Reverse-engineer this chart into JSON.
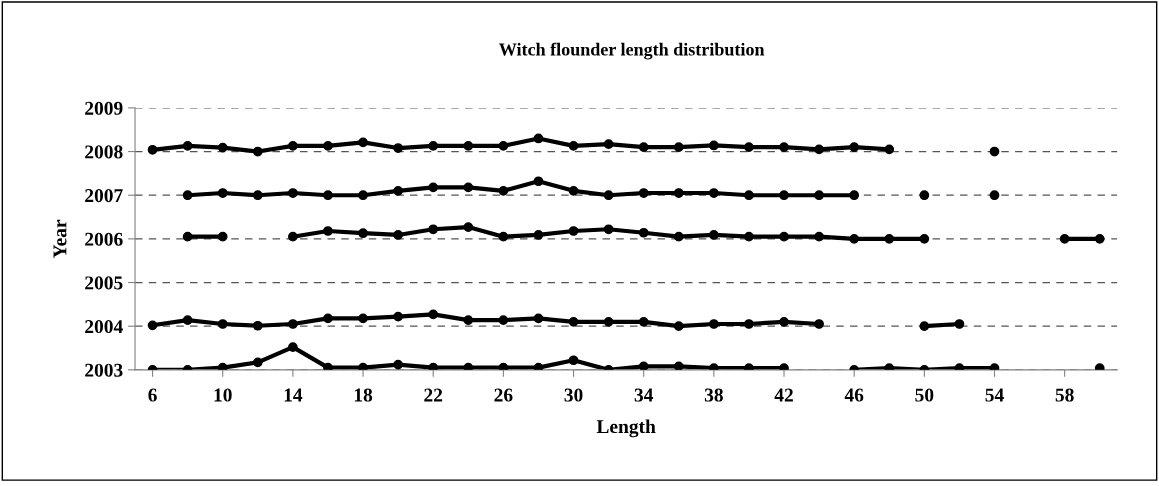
{
  "chart_data": {
    "type": "line",
    "title": "Witch flounder length distribution",
    "xlabel": "Length",
    "ylabel": "Year",
    "x": [
      6,
      8,
      10,
      12,
      14,
      16,
      18,
      20,
      22,
      24,
      26,
      28,
      30,
      32,
      34,
      36,
      38,
      40,
      42,
      44,
      46,
      48,
      50,
      52,
      54,
      56,
      58,
      60
    ],
    "series": [
      {
        "color": "#000000",
        "values": [
          2003.0,
          2003.0,
          2003.05,
          2003.17,
          2003.52,
          2003.05,
          2003.05,
          2003.12,
          2003.05,
          2003.05,
          2003.05,
          2003.05,
          2003.22,
          2003.0,
          2003.08,
          2003.08,
          2003.04,
          2003.04,
          2003.04,
          null,
          2003.0,
          2003.04,
          2003.0,
          2003.04,
          2003.04,
          null,
          null,
          2003.04
        ]
      },
      {
        "color": "#000000",
        "values": [
          2004.02,
          2004.14,
          2004.05,
          2004.01,
          2004.05,
          2004.18,
          2004.18,
          2004.22,
          2004.27,
          2004.14,
          2004.14,
          2004.18,
          2004.1,
          2004.1,
          2004.1,
          2004.0,
          2004.05,
          2004.05,
          2004.1,
          2004.05,
          null,
          null,
          2004.0,
          2004.05,
          null,
          null,
          null,
          null
        ]
      },
      {
        "color": "#000000",
        "values": [
          null,
          2006.05,
          2006.05,
          null,
          2006.05,
          2006.18,
          2006.13,
          2006.09,
          2006.22,
          2006.27,
          2006.05,
          2006.09,
          2006.18,
          2006.22,
          2006.14,
          2006.05,
          2006.09,
          2006.05,
          2006.05,
          2006.05,
          2006.0,
          2006.0,
          2006.0,
          null,
          null,
          null,
          2006.0,
          2006.0
        ]
      },
      {
        "color": "#000000",
        "values": [
          null,
          2007.0,
          2007.05,
          2007.0,
          2007.05,
          2007.0,
          2007.0,
          2007.1,
          2007.18,
          2007.18,
          2007.1,
          2007.32,
          2007.1,
          2007.0,
          2007.05,
          2007.05,
          2007.05,
          2007.0,
          2007.0,
          2007.0,
          2007.0,
          null,
          2007.0,
          null,
          2007.0,
          null,
          null,
          null
        ]
      },
      {
        "color": "#000000",
        "values": [
          2008.04,
          2008.13,
          2008.09,
          2008.0,
          2008.13,
          2008.13,
          2008.21,
          2008.08,
          2008.13,
          2008.13,
          2008.13,
          2008.3,
          2008.13,
          2008.17,
          2008.1,
          2008.1,
          2008.14,
          2008.1,
          2008.1,
          2008.05,
          2008.1,
          2008.05,
          null,
          null,
          2008.0,
          null,
          null,
          null
        ]
      }
    ],
    "xlim": [
      5,
      61
    ],
    "xticks": [
      6,
      10,
      14,
      18,
      22,
      26,
      30,
      34,
      38,
      42,
      46,
      50,
      54,
      58
    ],
    "ylim": [
      2003,
      2009
    ],
    "yticks": [
      2003,
      2004,
      2005,
      2006,
      2007,
      2008,
      2009
    ],
    "grid": "y",
    "legend": false,
    "marker": "circle",
    "line_style": "solid"
  }
}
